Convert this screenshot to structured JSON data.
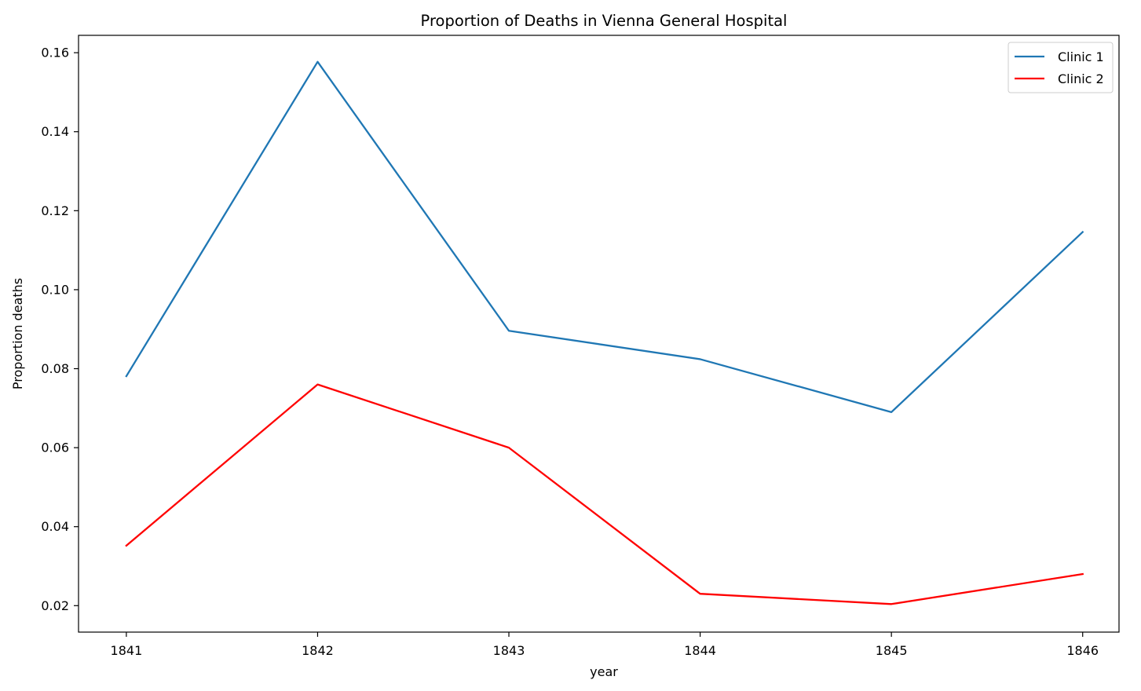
{
  "chart_data": {
    "type": "line",
    "title": "Proportion of Deaths in Vienna General Hospital",
    "xlabel": "year",
    "ylabel": "Proportion deaths",
    "x": [
      1841,
      1842,
      1843,
      1844,
      1845,
      1846
    ],
    "x_ticks": [
      "1841",
      "1842",
      "1843",
      "1844",
      "1845",
      "1846"
    ],
    "y_ticks": [
      "0.02",
      "0.04",
      "0.06",
      "0.08",
      "0.10",
      "0.12",
      "0.14",
      "0.16"
    ],
    "y_tick_values": [
      0.02,
      0.04,
      0.06,
      0.08,
      0.1,
      0.12,
      0.14,
      0.16
    ],
    "xlim": [
      1840.75,
      1846.19
    ],
    "ylim": [
      0.0133,
      0.1644
    ],
    "grid": false,
    "legend_position": "top-right",
    "series": [
      {
        "name": "Clinic 1",
        "color": "#1f77b4",
        "values": [
          0.0781,
          0.1577,
          0.0896,
          0.0824,
          0.069,
          0.1146
        ]
      },
      {
        "name": "Clinic 2",
        "color": "#ff0000",
        "values": [
          0.0352,
          0.076,
          0.06,
          0.023,
          0.0204,
          0.028
        ]
      }
    ]
  }
}
